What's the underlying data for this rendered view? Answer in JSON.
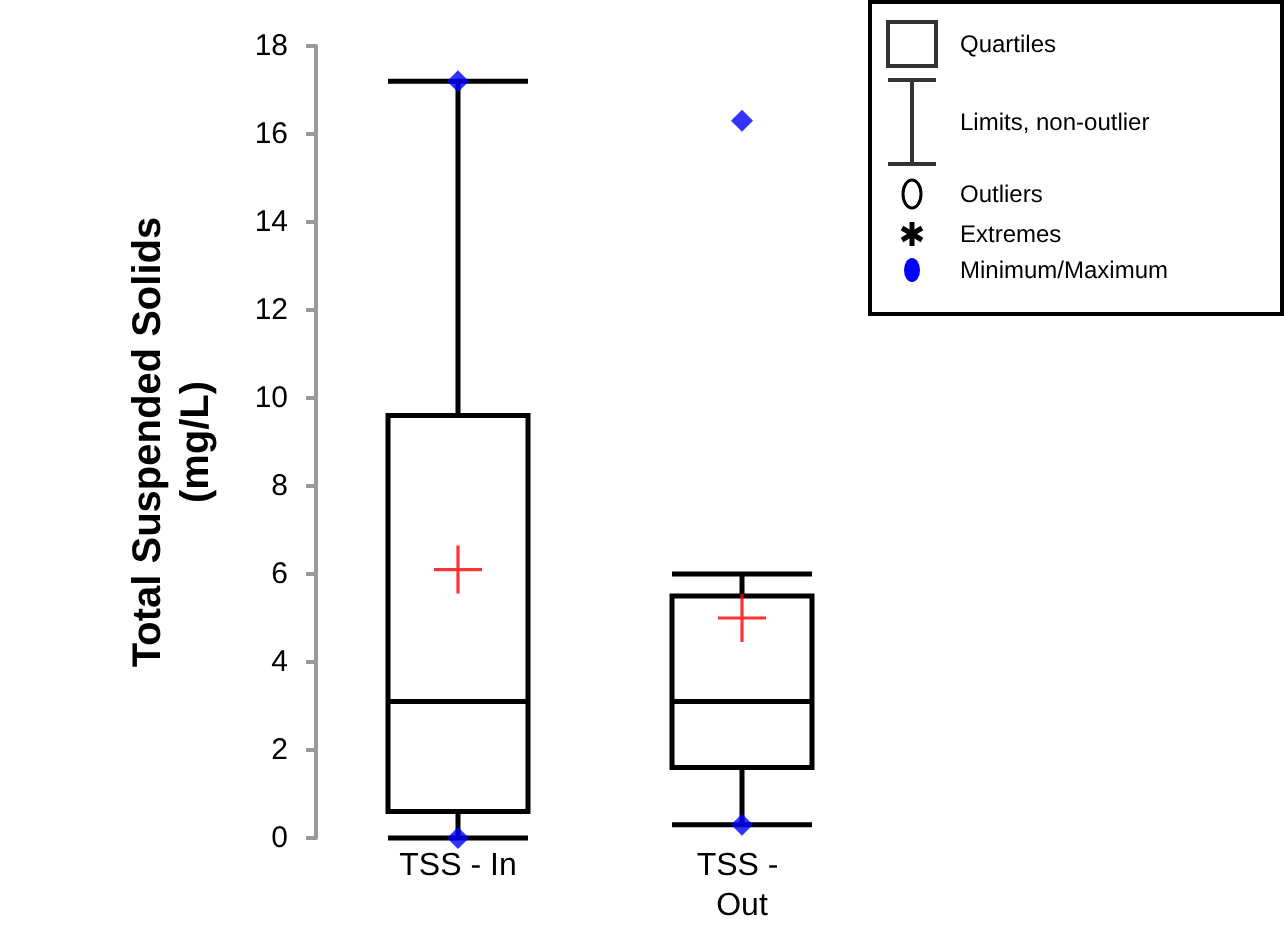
{
  "chart_data": {
    "type": "box",
    "ylabel": "Total Suspended Solids\n(mg/L)",
    "categories": [
      "TSS - In",
      "TSS - Out"
    ],
    "boxes": [
      {
        "low": 0,
        "q1": 0.6,
        "median": 3.1,
        "q3": 9.6,
        "high": 17.2
      },
      {
        "low": 0.3,
        "q1": 1.6,
        "median": 3.1,
        "q3": 5.5,
        "high": 6.0
      }
    ],
    "series": [
      {
        "type": "scatter",
        "name": "Minimum/Maximum",
        "color": "#0000ff",
        "x": [
          "TSS - In",
          "TSS - In",
          "TSS - Out",
          "TSS - Out"
        ],
        "values": [
          0,
          17.2,
          0.3,
          16.3
        ]
      },
      {
        "type": "scatter",
        "marker": "cross",
        "color": "#ff0000",
        "x": [
          "TSS - In",
          "TSS - Out"
        ],
        "values": [
          6.1,
          5.0
        ]
      }
    ],
    "marker": "diamond",
    "ylim": [
      0,
      18
    ],
    "yticks": [
      0,
      2,
      4,
      6,
      8,
      10,
      12,
      14,
      16,
      18
    ],
    "grid": false,
    "legend": "top right",
    "annotations": [
      "Quartiles",
      "Limits, non-outlier",
      "Outliers",
      "Extremes"
    ]
  }
}
